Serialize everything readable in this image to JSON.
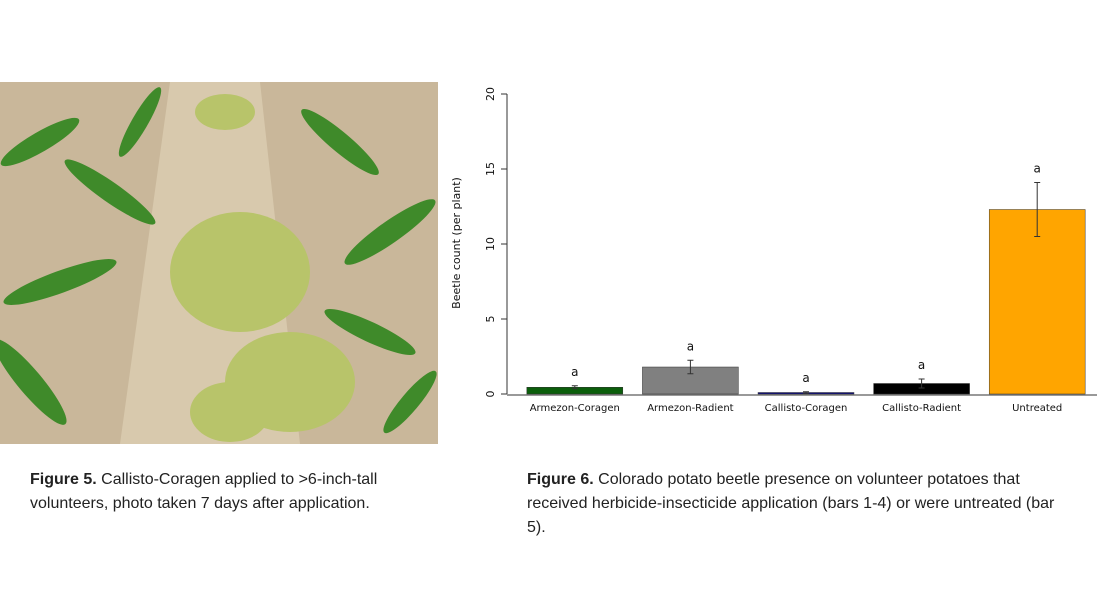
{
  "figure5": {
    "caption_label": "Figure 5.",
    "caption_text": "Callisto-Coragen applied to >6-inch-tall volunteers, photo taken 7 days after application."
  },
  "chart_data": {
    "type": "bar",
    "y_label": "Beetle count (per plant)",
    "categories": [
      "Armezon-Coragen",
      "Armezon-Radient",
      "Callisto-Coragen",
      "Callisto-Radient",
      "Untreated"
    ],
    "values": [
      0.45,
      1.8,
      0.1,
      0.7,
      12.3
    ],
    "errors": [
      0.1,
      0.45,
      0.05,
      0.3,
      1.8
    ],
    "colors": [
      "#0b5e0b",
      "#808080",
      "#0a0a80",
      "#000000",
      "#ffa500"
    ],
    "annotations": [
      "a",
      "a",
      "a",
      "a",
      "a"
    ],
    "ylim": [
      0,
      20
    ],
    "yticks": [
      0,
      5,
      10,
      15,
      20
    ]
  },
  "figure6": {
    "caption_label": "Figure 6.",
    "caption_text": "Colorado potato beetle presence on volunteer potatoes that received herbicide-insecticide application (bars 1-4) or were untreated (bar 5)."
  }
}
